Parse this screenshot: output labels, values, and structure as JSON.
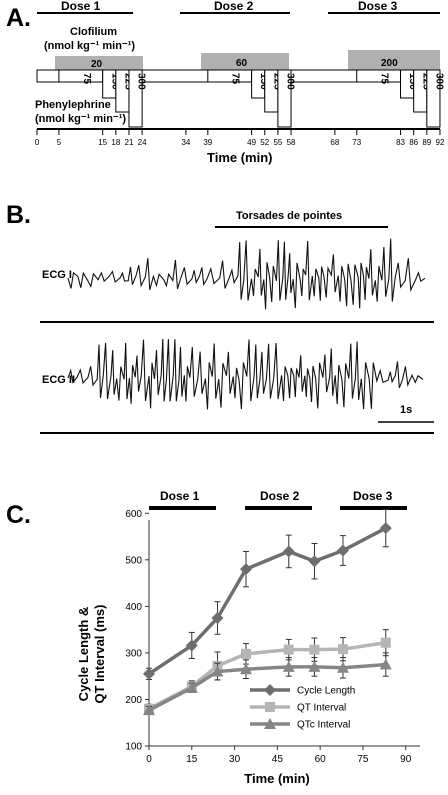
{
  "panel_a": {
    "letter": "A.",
    "doses": [
      "Dose 1",
      "Dose 2",
      "Dose 3"
    ],
    "clofilium_label": "Clofilium",
    "clofilium_units": "(nmol kg⁻¹ min⁻¹)",
    "clofilium_values": [
      "20",
      "60",
      "200"
    ],
    "phenylephrine_label": "Phenylephrine",
    "phenylephrine_units": "(nmol kg⁻¹ min⁻¹)",
    "phenylephrine_values": [
      "75",
      "150",
      "225",
      "300"
    ],
    "time_ticks": [
      "0",
      "5",
      "15",
      "18",
      "21",
      "24",
      "34",
      "39",
      "49",
      "52",
      "55",
      "58",
      "68",
      "73",
      "83",
      "86",
      "89",
      "92"
    ],
    "time_label": "Time (min)"
  },
  "panel_b": {
    "letter": "B.",
    "torsades_label": "Torsades de pointes",
    "ecg1_label": "ECG I",
    "ecg2_label": "ECG II",
    "scale_label": "1s"
  },
  "panel_c": {
    "letter": "C.",
    "doses": [
      "Dose 1",
      "Dose 2",
      "Dose 3"
    ],
    "y_label_line1": "Cycle Length &",
    "y_label_line2": "QT Interval (ms)",
    "x_label": "Time (min)"
  },
  "chart_data": {
    "type": "line",
    "xlabel": "Time (min)",
    "ylabel": "Cycle Length & QT Interval (ms)",
    "xlim": [
      0,
      95
    ],
    "ylim": [
      100,
      650
    ],
    "xticks": [
      0,
      15,
      30,
      45,
      60,
      75,
      90
    ],
    "yticks": [
      100,
      200,
      300,
      400,
      500,
      600
    ],
    "legend_position": "bottom-right",
    "series": [
      {
        "name": "Cycle Length",
        "color": "#6e6e6e",
        "marker": "diamond",
        "x": [
          0,
          15,
          24,
          34,
          49,
          58,
          68,
          83
        ],
        "y": [
          255,
          316,
          375,
          480,
          518,
          497,
          520,
          568
        ],
        "err": [
          12,
          28,
          35,
          38,
          35,
          38,
          32,
          40
        ]
      },
      {
        "name": "QT Interval",
        "color": "#b5b5b5",
        "marker": "square",
        "x": [
          0,
          15,
          24,
          34,
          49,
          58,
          68,
          83
        ],
        "y": [
          180,
          228,
          272,
          298,
          307,
          307,
          308,
          322
        ],
        "err": [
          10,
          12,
          30,
          22,
          22,
          25,
          25,
          28
        ]
      },
      {
        "name": "QTc Interval",
        "color": "#868686",
        "marker": "triangle",
        "x": [
          0,
          15,
          24,
          34,
          49,
          58,
          68,
          83
        ],
        "y": [
          177,
          225,
          260,
          265,
          270,
          270,
          268,
          275
        ],
        "err": [
          8,
          10,
          18,
          20,
          20,
          20,
          22,
          25
        ]
      }
    ]
  }
}
